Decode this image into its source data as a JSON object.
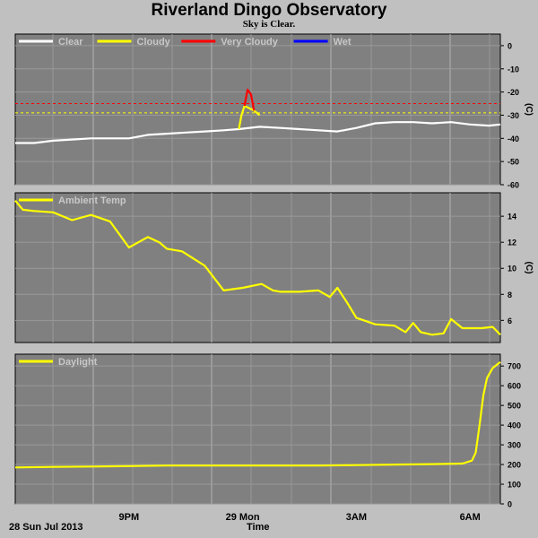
{
  "title": "Riverland Dingo Observatory",
  "subtitle": "Sky is Clear.",
  "footer": {
    "date": "28 Sun Jul 2013",
    "xlabel": "Time"
  },
  "colors": {
    "background": "#c0c0c0",
    "plot": "#808080",
    "grid": "#a8a8a8",
    "clear": "#ffffff",
    "cloudy": "#ffff00",
    "very_cloudy": "#ff0000",
    "wet": "#0000ff"
  },
  "chart_data": [
    {
      "type": "line",
      "xlabel": "Time",
      "xticks": [
        {
          "label": "9PM",
          "t": 3
        },
        {
          "label": "29 Mon",
          "t": 6
        },
        {
          "label": "3AM",
          "t": 9
        },
        {
          "label": "6AM",
          "t": 12
        }
      ],
      "xlim": [
        0,
        12.8
      ],
      "ylabel": "(C)",
      "ylim": [
        -60,
        5
      ],
      "yticks": [
        0,
        -10,
        -20,
        -30,
        -40,
        -50,
        -60
      ],
      "legend": [
        "Clear",
        "Cloudy",
        "Very Cloudy",
        "Wet"
      ],
      "legend_colors": [
        "#ffffff",
        "#ffff00",
        "#ff0000",
        "#0000ff"
      ],
      "thresholds": [
        {
          "value": -25,
          "color": "#ff0000"
        },
        {
          "value": -29,
          "color": "#ffff00"
        }
      ],
      "series": [
        {
          "name": "Clear",
          "x": [
            0,
            0.5,
            1,
            1.5,
            2,
            2.5,
            3,
            3.5,
            4,
            4.5,
            5,
            5.5,
            5.9,
            6.45,
            7,
            7.5,
            8,
            8.5,
            9,
            9.5,
            10,
            10.5,
            11,
            11.5,
            12,
            12.5,
            12.8
          ],
          "y": [
            -42,
            -42,
            -41,
            -40.5,
            -40,
            -40,
            -40,
            -38.5,
            -38,
            -37.5,
            -37,
            -36.5,
            -36,
            -35,
            -35.5,
            -36,
            -36.5,
            -37,
            -35.5,
            -33.5,
            -33,
            -33,
            -33.5,
            -33,
            -34,
            -34.5,
            -34
          ]
        },
        {
          "name": "Cloudy",
          "x": [
            5.9,
            5.97,
            6.05,
            6.3,
            6.45
          ],
          "y": [
            -36,
            -30,
            -26,
            -28,
            -30
          ]
        },
        {
          "name": "Very Cloudy",
          "x": [
            6.05,
            6.13,
            6.22,
            6.3
          ],
          "y": [
            -26,
            -19,
            -21,
            -28
          ]
        }
      ]
    },
    {
      "type": "line",
      "xlabel": "Time",
      "xlim": [
        0,
        12.8
      ],
      "ylabel": "(C)",
      "ylim": [
        4.3,
        15.8
      ],
      "yticks": [
        6,
        8,
        10,
        12,
        14
      ],
      "legend": [
        "Ambient Temp"
      ],
      "series": [
        {
          "name": "Ambient Temp",
          "x": [
            0,
            0.2,
            0.5,
            1,
            1.5,
            2,
            2.5,
            3,
            3.5,
            3.8,
            4,
            4.4,
            5,
            5.5,
            6,
            6.5,
            6.8,
            7,
            7.5,
            8,
            8.3,
            8.5,
            8.75,
            9,
            9.5,
            10,
            10.3,
            10.5,
            10.7,
            11,
            11.3,
            11.5,
            11.8,
            12,
            12.3,
            12.6,
            12.8
          ],
          "y": [
            15.2,
            14.5,
            14.4,
            14.3,
            13.7,
            14.1,
            13.6,
            11.6,
            12.4,
            12,
            11.5,
            11.3,
            10.2,
            8.3,
            8.5,
            8.8,
            8.3,
            8.2,
            8.2,
            8.3,
            7.8,
            8.5,
            7.4,
            6.2,
            5.7,
            5.6,
            5.1,
            5.8,
            5.1,
            4.9,
            5,
            6.1,
            5.4,
            5.4,
            5.4,
            5.5,
            4.9
          ]
        }
      ]
    },
    {
      "type": "line",
      "xlabel": "Time",
      "xlim": [
        0,
        12.8
      ],
      "ylim": [
        0,
        760
      ],
      "yticks": [
        0,
        100,
        200,
        300,
        400,
        500,
        600,
        700
      ],
      "legend": [
        "Daylight"
      ],
      "series": [
        {
          "name": "Daylight",
          "x": [
            0,
            1,
            2,
            3,
            4,
            5,
            6,
            7,
            8,
            9,
            10,
            11,
            11.8,
            12.05,
            12.15,
            12.25,
            12.35,
            12.45,
            12.6,
            12.8
          ],
          "y": [
            185,
            188,
            190,
            192,
            195,
            195,
            195,
            195,
            195,
            197,
            200,
            202,
            205,
            220,
            260,
            400,
            550,
            640,
            690,
            720
          ]
        }
      ]
    }
  ]
}
